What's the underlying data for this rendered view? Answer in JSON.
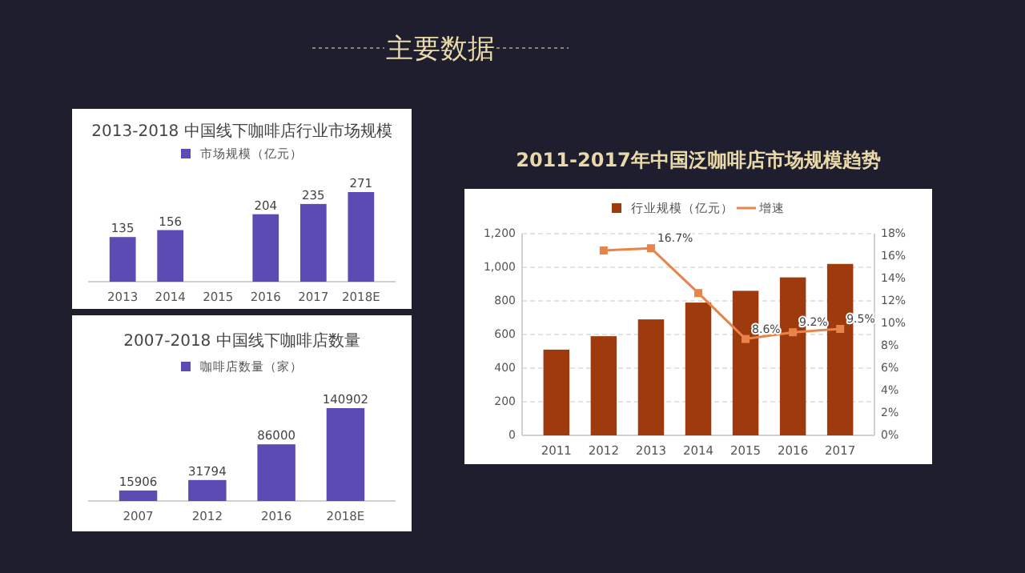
{
  "chart_data": [
    {
      "type": "bar",
      "title": "2013-2018 中国线下咖啡店行业市场规模",
      "annotations": [
        "主要数据"
      ],
      "categories": [
        "2013",
        "2014",
        "2015",
        "2016",
        "2017",
        "2018E"
      ],
      "legend": "top",
      "data_labels": true,
      "series": [
        {
          "name": "市场规模（亿元）",
          "color": "#5b4bb3",
          "values": [
            135,
            156,
            null,
            204,
            235,
            271
          ]
        }
      ]
    },
    {
      "type": "bar",
      "title": "2007-2018 中国线下咖啡店数量",
      "categories": [
        "2007",
        "2012",
        "2016",
        "2018E"
      ],
      "legend": "top",
      "data_labels": true,
      "series": [
        {
          "name": "咖啡店数量（家）",
          "color": "#5b4bb3",
          "values": [
            15906,
            31794,
            86000,
            140902
          ]
        }
      ]
    },
    {
      "type": "bar",
      "title": "2011-2017年中国泛咖啡店市场规模趋势",
      "categories": [
        "2011",
        "2012",
        "2013",
        "2014",
        "2015",
        "2016",
        "2017"
      ],
      "legend": "top",
      "grid": "y",
      "ylim": [
        0,
        1200
      ],
      "yticks": [
        0,
        {
          "value": 200,
          "label": "200"
        },
        {
          "value": 400,
          "label": "400"
        },
        {
          "value": 600,
          "label": "600"
        },
        {
          "value": 800,
          "label": "800"
        },
        {
          "value": 1000,
          "label": "1,000"
        },
        {
          "value": 1200,
          "label": "1,200"
        }
      ],
      "y2lim": [
        0,
        18
      ],
      "y2ticks": [
        {
          "value": 0,
          "label": "0%"
        },
        {
          "value": 2,
          "label": "2%"
        },
        {
          "value": 4,
          "label": "4%"
        },
        {
          "value": 6,
          "label": "6%"
        },
        {
          "value": 8,
          "label": "8%"
        },
        {
          "value": 10,
          "label": "10%"
        },
        {
          "value": 12,
          "label": "12%"
        },
        {
          "value": 14,
          "label": "14%"
        },
        {
          "value": 16,
          "label": "16%"
        },
        {
          "value": 18,
          "label": "18%"
        }
      ],
      "series": [
        {
          "name": "行业规模（亿元）",
          "type": "bar",
          "color": "#9e3a0e",
          "values": [
            510,
            590,
            690,
            790,
            860,
            940,
            1020
          ]
        },
        {
          "name": "增速",
          "type": "line",
          "axis": "y2",
          "marker": "square",
          "color": "#e8844a",
          "values": [
            null,
            16.5,
            16.7,
            12.7,
            8.6,
            9.2,
            9.5
          ],
          "value_labels": [
            null,
            null,
            "16.7%",
            null,
            "8.6%",
            "9.2%",
            "9.5%"
          ]
        }
      ]
    }
  ]
}
